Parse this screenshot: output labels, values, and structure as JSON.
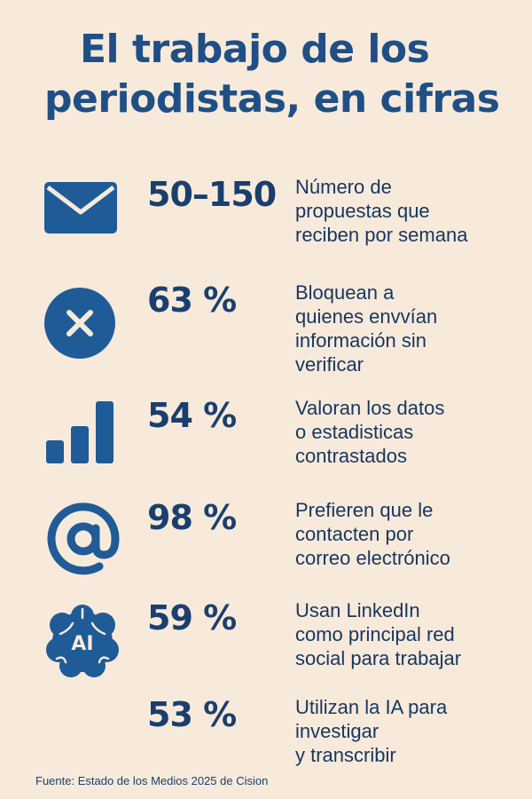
{
  "title": {
    "line1": "El trabajo de los",
    "line2": "periodistas, en cifras"
  },
  "colors": {
    "background": "#f7eadb",
    "accent": "#1f5b97",
    "text": "#1a3f6f"
  },
  "stats": [
    {
      "icon": "envelope-icon",
      "value": "50–150",
      "lines": [
        "Número de",
        "propuestas que",
        "reciben por semana"
      ]
    },
    {
      "icon": "close-circle-icon",
      "value": "63 %",
      "lines": [
        "Bloquean a",
        "quienes envvían",
        "información sin",
        "verificar"
      ]
    },
    {
      "icon": "bar-chart-icon",
      "value": "54 %",
      "lines": [
        "Valoran los datos",
        "o estadisticas",
        "contrastados"
      ]
    },
    {
      "icon": "at-sign-icon",
      "value": "98 %",
      "lines": [
        "Prefieren que le",
        "contacten por",
        "correo electrónico"
      ]
    },
    {
      "icon": "ai-brain-icon",
      "value": "59 %",
      "lines": [
        "Usan LinkedIn",
        "como principal red",
        "social para trabajar"
      ]
    },
    {
      "icon": "",
      "value": "53 %",
      "lines": [
        "Utilizan la IA para",
        "investigar",
        "y transcribir"
      ]
    }
  ],
  "ai_icon_label": "AI",
  "source": "Fuente: Estado de los Medios 2025 de Cision"
}
